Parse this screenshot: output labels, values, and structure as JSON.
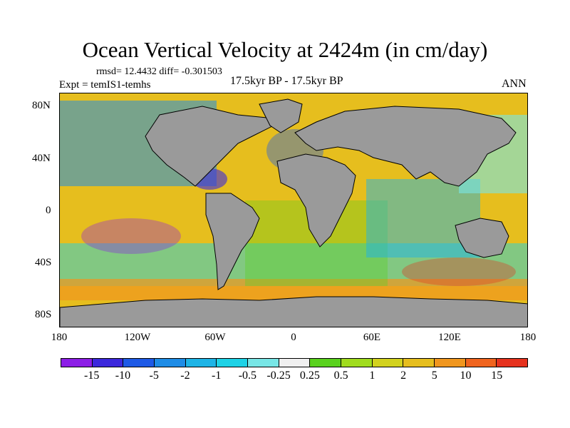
{
  "title": "Ocean Vertical Velocity at 2424m (in cm/day)",
  "stats": "rmsd= 12.4432  diff= -0.301503",
  "experiment": "Expt = temIS1-temhs",
  "period": "17.5kyr BP - 17.5kyr BP",
  "season": "ANN",
  "lat_labels": [
    "80N",
    "40N",
    "0",
    "40S",
    "80S"
  ],
  "lon_labels": [
    "180",
    "120W",
    "60W",
    "0",
    "60E",
    "120E",
    "180"
  ],
  "colorbar": {
    "labels": [
      "-15",
      "-10",
      "-5",
      "-2",
      "-1",
      "-0.5",
      "-0.25",
      "0.25",
      "0.5",
      "1",
      "2",
      "5",
      "10",
      "15"
    ],
    "colors": [
      "#8c1ee6",
      "#3c28dc",
      "#1e5ae6",
      "#1e8ce6",
      "#1eb4e6",
      "#1ed2e6",
      "#78e6e6",
      "#f0f0f0",
      "#5ad21e",
      "#a0dc1e",
      "#d2d21e",
      "#e6be1e",
      "#f0961e",
      "#f0641e",
      "#e6321e"
    ]
  },
  "land_color": "#9a9a9a"
}
